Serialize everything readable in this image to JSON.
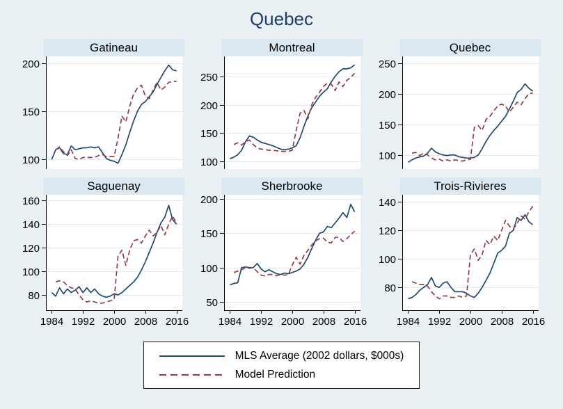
{
  "title": "Quebec",
  "colors": {
    "background": "#EAF1F4",
    "panel_band": "#DBE8F2",
    "plot_bg": "#FFFFFF",
    "gridline": "#E2E9F0",
    "axis": "#000000",
    "navy": "#1C4A73",
    "maroon": "#9A3B44",
    "title_text": "#1E3C6E"
  },
  "legend": {
    "position": "bottom-center",
    "items": [
      {
        "label": "MLS Average (2002 dollars, $000s)",
        "style": "solid",
        "color": "#1C4A73"
      },
      {
        "label": "Model Prediction",
        "style": "dashed",
        "color": "#9A3B44"
      }
    ]
  },
  "x_axis": {
    "ticks": [
      1984,
      1992,
      2000,
      2008,
      2016
    ],
    "range": [
      1982.5,
      2017.5
    ]
  },
  "chart_data": [
    {
      "type": "line",
      "title": "Gatineau",
      "xlabel": "",
      "ylabel": "",
      "grid": "horizontal",
      "show_x_labels": false,
      "ylim": [
        90,
        207
      ],
      "yticks": [
        100,
        150,
        200
      ],
      "series": [
        {
          "name": "MLS Average (2002 dollars, $000s)",
          "style": "solid",
          "color": "#1C4A73",
          "start": 1984,
          "values": [
            100,
            110,
            112,
            106,
            105,
            114,
            110,
            111,
            112,
            112,
            113,
            112,
            113,
            107,
            101,
            99,
            98,
            96,
            105,
            115,
            128,
            140,
            150,
            157,
            160,
            165,
            170,
            178,
            185,
            192,
            198,
            193,
            192
          ]
        },
        {
          "name": "Model Prediction",
          "style": "dashed",
          "color": "#9A3B44",
          "start": 1985,
          "values": [
            110,
            113,
            108,
            104,
            110,
            101,
            100,
            102,
            102,
            102,
            102,
            104,
            105,
            103,
            103,
            103,
            122,
            145,
            139,
            155,
            168,
            174,
            177,
            166,
            163,
            172,
            180,
            172,
            175,
            180,
            181,
            181
          ]
        }
      ]
    },
    {
      "type": "line",
      "title": "Montreal",
      "xlabel": "",
      "ylabel": "",
      "grid": "horizontal",
      "show_x_labels": false,
      "ylim": [
        87,
        285
      ],
      "yticks": [
        100,
        150,
        200,
        250
      ],
      "series": [
        {
          "name": "MLS Average (2002 dollars, $000s)",
          "style": "solid",
          "color": "#1C4A73",
          "start": 1984,
          "values": [
            105,
            108,
            112,
            120,
            135,
            145,
            143,
            138,
            134,
            132,
            130,
            128,
            125,
            122,
            121,
            122,
            124,
            128,
            142,
            162,
            180,
            195,
            205,
            215,
            222,
            228,
            240,
            250,
            258,
            263,
            263,
            265,
            270
          ]
        },
        {
          "name": "Model Prediction",
          "style": "dashed",
          "color": "#9A3B44",
          "start": 1985,
          "values": [
            130,
            133,
            129,
            135,
            138,
            130,
            124,
            122,
            121,
            120,
            120,
            119,
            118,
            118,
            118,
            120,
            155,
            185,
            190,
            175,
            200,
            213,
            222,
            232,
            238,
            236,
            225,
            240,
            232,
            243,
            248,
            255
          ]
        }
      ]
    },
    {
      "type": "line",
      "title": "Quebec",
      "xlabel": "",
      "ylabel": "",
      "grid": "horizontal",
      "show_x_labels": false,
      "ylim": [
        77,
        261
      ],
      "yticks": [
        100,
        150,
        200,
        250
      ],
      "series": [
        {
          "name": "MLS Average (2002 dollars, $000s)",
          "style": "solid",
          "color": "#1C4A73",
          "start": 1984,
          "values": [
            88,
            92,
            95,
            97,
            98,
            103,
            111,
            105,
            102,
            100,
            99,
            100,
            100,
            97,
            96,
            95,
            95,
            96,
            100,
            110,
            122,
            132,
            140,
            147,
            155,
            163,
            175,
            188,
            202,
            207,
            216,
            209,
            204
          ]
        },
        {
          "name": "Model Prediction",
          "style": "dashed",
          "color": "#9A3B44",
          "start": 1985,
          "values": [
            103,
            104,
            99,
            103,
            100,
            95,
            92,
            93,
            90,
            92,
            90,
            92,
            91,
            90,
            92,
            93,
            145,
            148,
            140,
            158,
            163,
            172,
            180,
            183,
            180,
            170,
            178,
            186,
            182,
            192,
            200,
            201
          ]
        }
      ]
    },
    {
      "type": "line",
      "title": "Saguenay",
      "xlabel": "",
      "ylabel": "",
      "grid": "horizontal",
      "show_x_labels": true,
      "ylim": [
        67,
        165
      ],
      "yticks": [
        80,
        100,
        120,
        140,
        160
      ],
      "series": [
        {
          "name": "MLS Average (2002 dollars, $000s)",
          "style": "solid",
          "color": "#1C4A73",
          "start": 1984,
          "values": [
            82,
            79,
            86,
            81,
            85,
            82,
            84,
            87,
            82,
            86,
            82,
            85,
            81,
            79,
            78,
            79,
            81,
            80,
            82,
            85,
            88,
            91,
            95,
            101,
            108,
            116,
            124,
            133,
            141,
            146,
            156,
            144,
            140
          ]
        },
        {
          "name": "Model Prediction",
          "style": "dashed",
          "color": "#9A3B44",
          "start": 1985,
          "values": [
            91,
            92,
            91,
            88,
            86,
            85,
            80,
            76,
            74,
            75,
            74,
            73,
            73,
            74,
            75,
            76,
            113,
            118,
            105,
            118,
            126,
            127,
            124,
            130,
            135,
            130,
            133,
            139,
            131,
            140,
            147,
            141
          ]
        }
      ]
    },
    {
      "type": "line",
      "title": "Sherbrooke",
      "xlabel": "",
      "ylabel": "",
      "grid": "horizontal",
      "show_x_labels": true,
      "ylim": [
        38,
        206
      ],
      "yticks": [
        50,
        100,
        150,
        200
      ],
      "series": [
        {
          "name": "MLS Average (2002 dollars, $000s)",
          "style": "solid",
          "color": "#1C4A73",
          "start": 1984,
          "values": [
            75,
            77,
            78,
            100,
            101,
            100,
            100,
            106,
            98,
            94,
            97,
            94,
            91,
            90,
            92,
            91,
            93,
            95,
            98,
            105,
            115,
            128,
            140,
            150,
            152,
            160,
            158,
            165,
            172,
            180,
            173,
            192,
            181
          ]
        },
        {
          "name": "Model Prediction",
          "style": "dashed",
          "color": "#9A3B44",
          "start": 1985,
          "values": [
            93,
            95,
            97,
            100,
            99,
            100,
            94,
            89,
            88,
            90,
            90,
            88,
            90,
            89,
            90,
            104,
            115,
            105,
            118,
            125,
            133,
            139,
            142,
            143,
            137,
            136,
            144,
            144,
            138,
            142,
            148,
            153
          ]
        }
      ]
    },
    {
      "type": "line",
      "title": "Trois-Rivieres",
      "xlabel": "",
      "ylabel": "",
      "grid": "horizontal",
      "show_x_labels": true,
      "ylim": [
        64,
        145
      ],
      "yticks": [
        80,
        100,
        120,
        140
      ],
      "series": [
        {
          "name": "MLS Average (2002 dollars, $000s)",
          "style": "solid",
          "color": "#1C4A73",
          "start": 1984,
          "values": [
            72,
            73,
            75,
            78,
            80,
            82,
            87,
            81,
            80,
            83,
            84,
            80,
            77,
            77,
            77,
            76,
            74,
            73,
            76,
            80,
            85,
            90,
            97,
            104,
            106,
            109,
            118,
            120,
            129,
            127,
            131,
            126,
            124
          ]
        },
        {
          "name": "Model Prediction",
          "style": "dashed",
          "color": "#9A3B44",
          "start": 1985,
          "values": [
            84,
            83,
            82,
            82,
            81,
            77,
            74,
            72,
            74,
            74,
            73,
            73,
            74,
            73,
            74,
            103,
            107,
            99,
            103,
            113,
            110,
            116,
            113,
            120,
            127,
            123,
            121,
            125,
            130,
            128,
            133,
            137
          ]
        }
      ]
    }
  ]
}
